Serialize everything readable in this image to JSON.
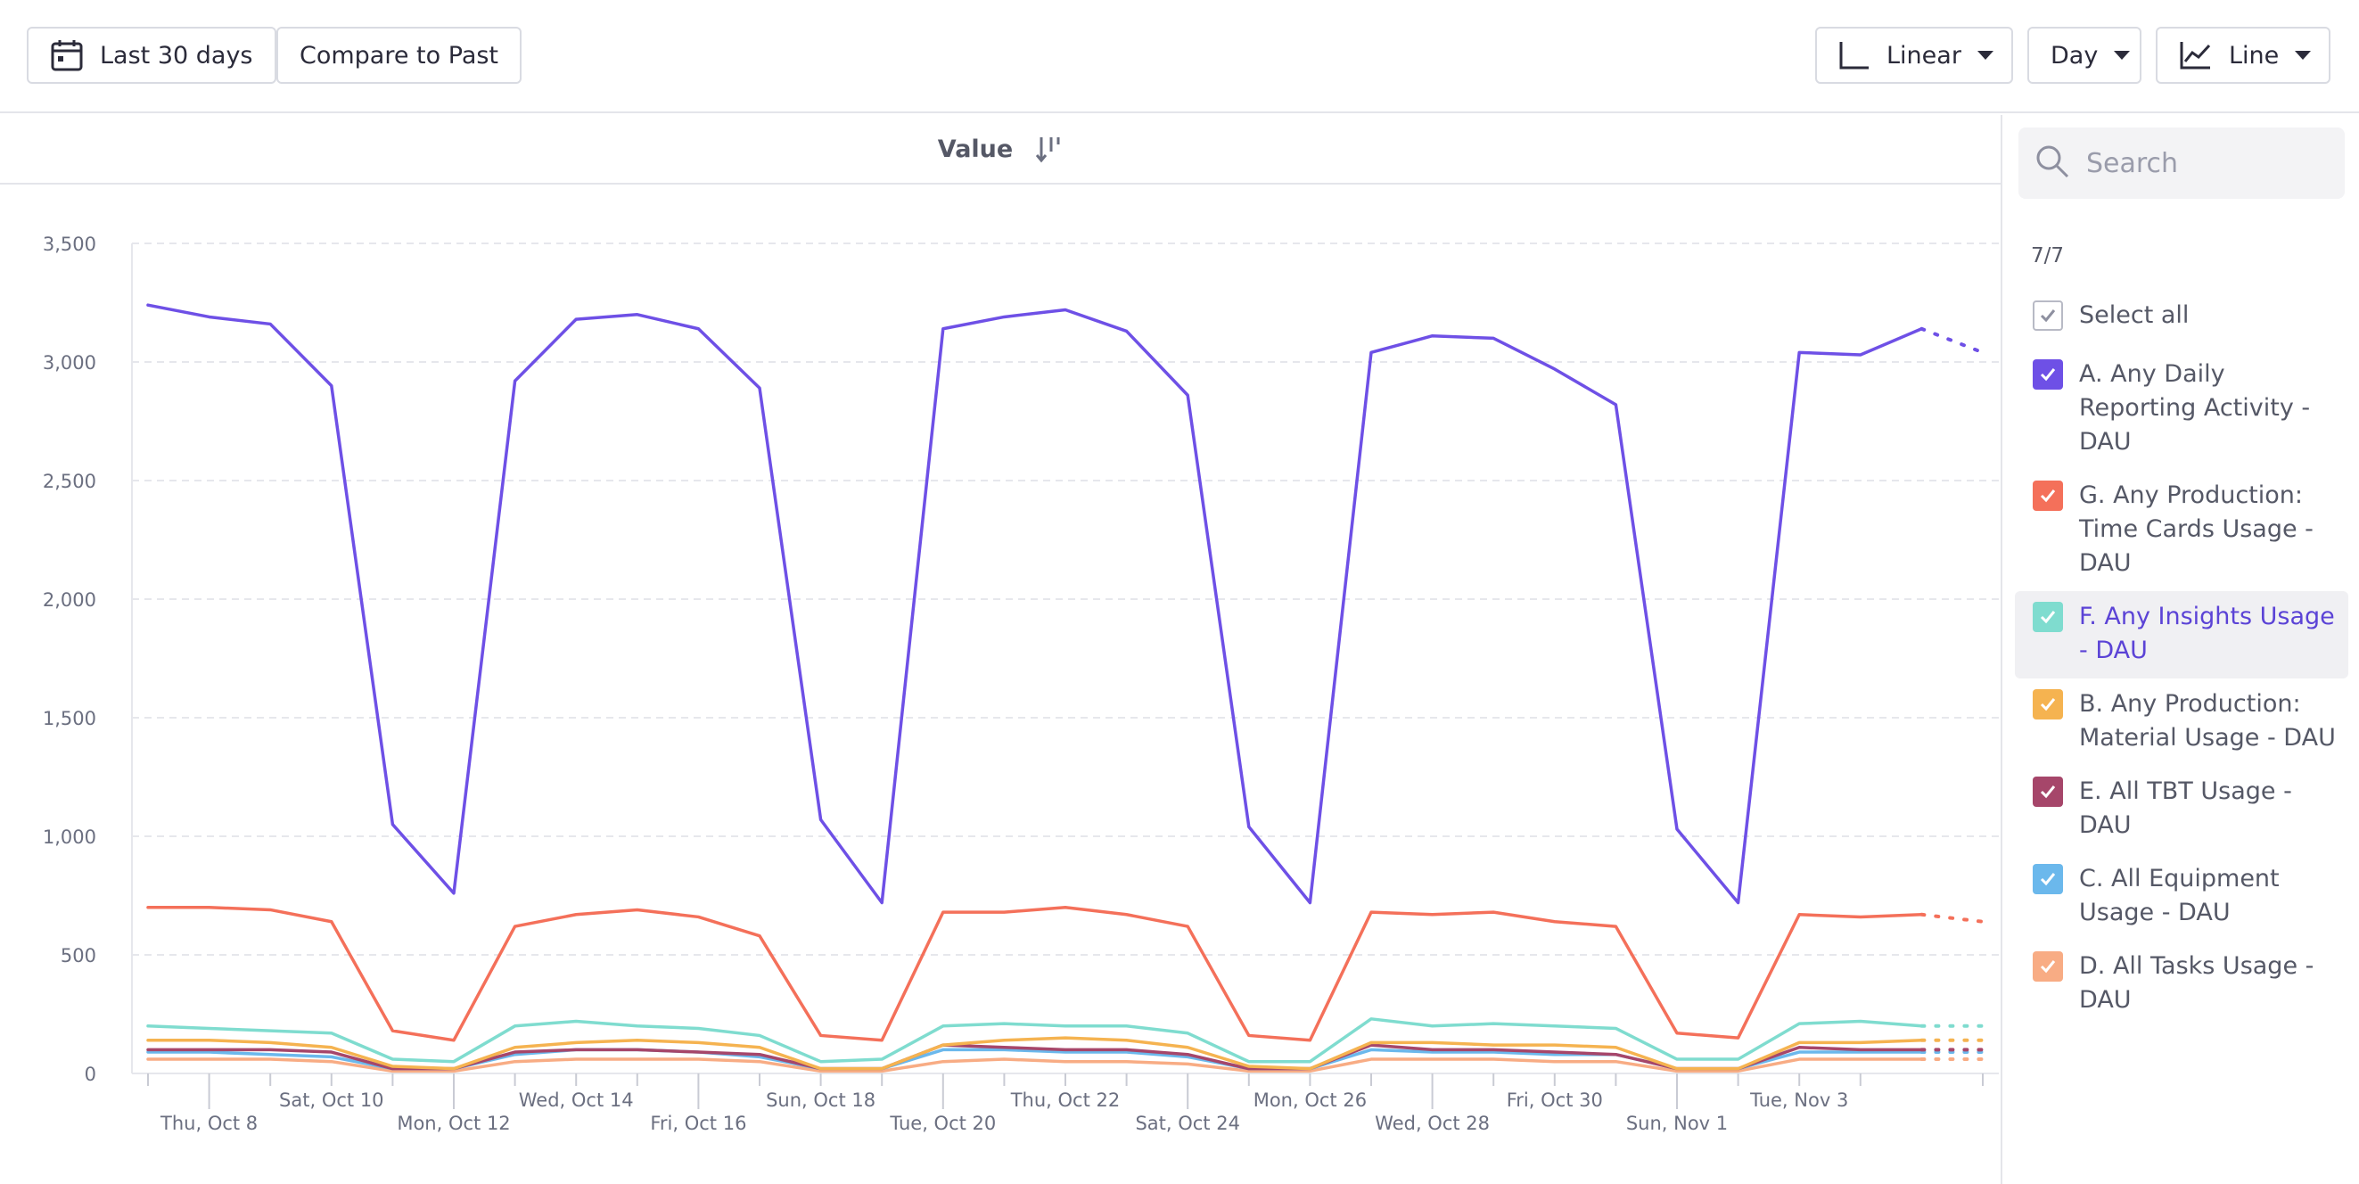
{
  "toolbar": {
    "date_range_label": "Last 30 days",
    "compare_label": "Compare to Past",
    "scale_label": "Linear",
    "interval_label": "Day",
    "chart_type_label": "Line"
  },
  "chart_header": {
    "column_label": "Value"
  },
  "search": {
    "placeholder": "Search"
  },
  "legend": {
    "count": "7/7",
    "select_all": "Select all",
    "items": [
      {
        "label": "A. Any Daily Reporting Activity - DAU",
        "color": "#6e50e6"
      },
      {
        "label": "G. Any Production: Time Cards Usage - DAU",
        "color": "#f4705a"
      },
      {
        "label": "F. Any Insights Usage - DAU",
        "color": "#7fdccf",
        "highlighted": true
      },
      {
        "label": "B. Any Production: Material Usage - DAU",
        "color": "#f5b350"
      },
      {
        "label": "E. All TBT Usage - DAU",
        "color": "#a6466a"
      },
      {
        "label": "C. All Equipment Usage - DAU",
        "color": "#6bb8ec"
      },
      {
        "label": "D. All Tasks Usage - DAU",
        "color": "#f8ac84"
      }
    ]
  },
  "chart_data": {
    "type": "line",
    "x_start": "2020-10-07",
    "ylim": [
      0,
      3500
    ],
    "yticks": [
      0,
      500,
      1000,
      1500,
      2000,
      2500,
      3000,
      3500
    ],
    "ytick_labels": [
      "0",
      "500",
      "1,000",
      "1,500",
      "2,000",
      "2,500",
      "3,000",
      "3,500"
    ],
    "grid": true,
    "xtick_labels": [
      {
        "day": 1,
        "label": "Thu, Oct 8",
        "row": 2
      },
      {
        "day": 3,
        "label": "Sat, Oct 10",
        "row": 1
      },
      {
        "day": 5,
        "label": "Mon, Oct 12",
        "row": 2
      },
      {
        "day": 7,
        "label": "Wed, Oct 14",
        "row": 1
      },
      {
        "day": 9,
        "label": "Fri, Oct 16",
        "row": 2
      },
      {
        "day": 11,
        "label": "Sun, Oct 18",
        "row": 1
      },
      {
        "day": 13,
        "label": "Tue, Oct 20",
        "row": 2
      },
      {
        "day": 15,
        "label": "Thu, Oct 22",
        "row": 1
      },
      {
        "day": 17,
        "label": "Sat, Oct 24",
        "row": 2
      },
      {
        "day": 19,
        "label": "Mon, Oct 26",
        "row": 1
      },
      {
        "day": 21,
        "label": "Wed, Oct 28",
        "row": 2
      },
      {
        "day": 23,
        "label": "Fri, Oct 30",
        "row": 1
      },
      {
        "day": 25,
        "label": "Sun, Nov 1",
        "row": 2
      },
      {
        "day": 27,
        "label": "Tue, Nov 3",
        "row": 1
      }
    ],
    "partial_last_point": true,
    "series": [
      {
        "name": "A. Any Daily Reporting Activity - DAU",
        "color": "#6e50e6",
        "values": [
          3240,
          3190,
          3160,
          2900,
          1050,
          760,
          2920,
          3180,
          3200,
          3140,
          2890,
          1070,
          720,
          3140,
          3190,
          3220,
          3130,
          2860,
          1040,
          720,
          3040,
          3110,
          3100,
          2970,
          2820,
          1030,
          720,
          3040,
          3030,
          3140,
          3040
        ]
      },
      {
        "name": "G. Any Production: Time Cards Usage - DAU",
        "color": "#f4705a",
        "values": [
          700,
          700,
          690,
          640,
          180,
          140,
          620,
          670,
          690,
          660,
          580,
          160,
          140,
          680,
          680,
          700,
          670,
          620,
          160,
          140,
          680,
          670,
          680,
          640,
          620,
          170,
          150,
          670,
          660,
          670,
          640
        ]
      },
      {
        "name": "F. Any Insights Usage - DAU",
        "color": "#7fdccf",
        "values": [
          200,
          190,
          180,
          170,
          60,
          50,
          200,
          220,
          200,
          190,
          160,
          50,
          60,
          200,
          210,
          200,
          200,
          170,
          50,
          50,
          230,
          200,
          210,
          200,
          190,
          60,
          60,
          210,
          220,
          200,
          200
        ]
      },
      {
        "name": "B. Any Production: Material Usage - DAU",
        "color": "#f5b350",
        "values": [
          140,
          140,
          130,
          110,
          30,
          20,
          110,
          130,
          140,
          130,
          110,
          20,
          20,
          120,
          140,
          150,
          140,
          110,
          30,
          20,
          130,
          130,
          120,
          120,
          110,
          20,
          20,
          130,
          130,
          140,
          140
        ]
      },
      {
        "name": "E. All TBT Usage - DAU",
        "color": "#a6466a",
        "values": [
          100,
          100,
          100,
          90,
          20,
          20,
          90,
          100,
          100,
          90,
          80,
          20,
          20,
          120,
          110,
          100,
          100,
          80,
          20,
          20,
          120,
          100,
          100,
          90,
          80,
          20,
          20,
          110,
          100,
          100,
          100
        ]
      },
      {
        "name": "C. All Equipment Usage - DAU",
        "color": "#6bb8ec",
        "values": [
          90,
          90,
          80,
          70,
          20,
          20,
          80,
          100,
          100,
          90,
          70,
          20,
          20,
          100,
          100,
          90,
          90,
          70,
          20,
          20,
          100,
          90,
          90,
          80,
          80,
          20,
          20,
          90,
          90,
          90,
          90
        ]
      },
      {
        "name": "D. All Tasks Usage - DAU",
        "color": "#f8ac84",
        "values": [
          60,
          60,
          60,
          50,
          10,
          10,
          50,
          60,
          60,
          60,
          50,
          10,
          10,
          50,
          60,
          50,
          50,
          40,
          10,
          10,
          60,
          60,
          60,
          50,
          50,
          10,
          10,
          60,
          60,
          60,
          60
        ]
      }
    ]
  }
}
